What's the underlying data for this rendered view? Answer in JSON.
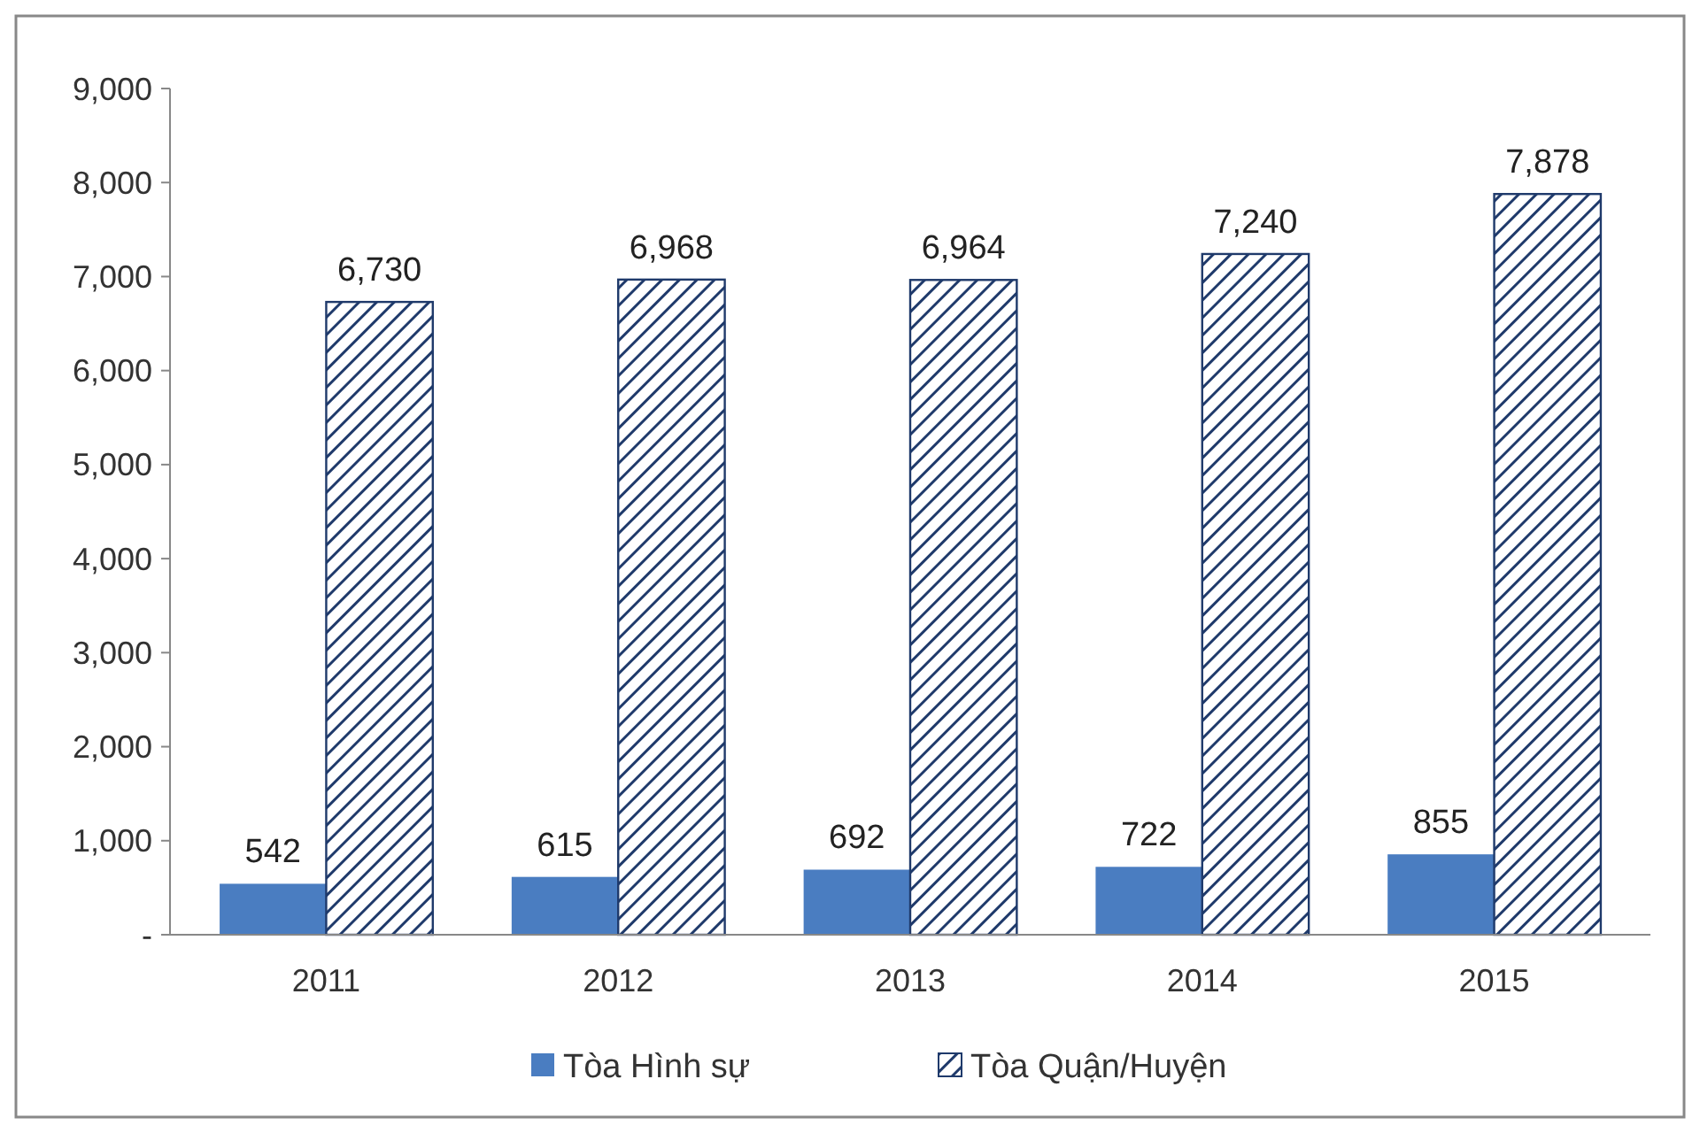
{
  "chart_data": {
    "type": "bar",
    "categories": [
      "2011",
      "2012",
      "2013",
      "2014",
      "2015"
    ],
    "series": [
      {
        "name": "Tòa Hình sự",
        "color": "#4a7dc1",
        "values": [
          542,
          615,
          692,
          722,
          855
        ],
        "value_labels": [
          "542",
          "615",
          "692",
          "722",
          "855"
        ]
      },
      {
        "name": "Tòa Quận/Huyện",
        "color": "#1f3a6b",
        "values": [
          6730,
          6968,
          6964,
          7240,
          7878
        ],
        "value_labels": [
          "6,730",
          "6,968",
          "6,964",
          "7,240",
          "7,878"
        ]
      }
    ],
    "ylim": [
      0,
      9000
    ],
    "yticks": [
      {
        "value": 0,
        "label": "-"
      },
      {
        "value": 1000,
        "label": "1,000"
      },
      {
        "value": 2000,
        "label": "2,000"
      },
      {
        "value": 3000,
        "label": "3,000"
      },
      {
        "value": 4000,
        "label": "4,000"
      },
      {
        "value": 5000,
        "label": "5,000"
      },
      {
        "value": 6000,
        "label": "6,000"
      },
      {
        "value": 7000,
        "label": "7,000"
      },
      {
        "value": 8000,
        "label": "8,000"
      },
      {
        "value": 9000,
        "label": "9,000"
      }
    ],
    "legend": "bottom",
    "grid": false
  }
}
